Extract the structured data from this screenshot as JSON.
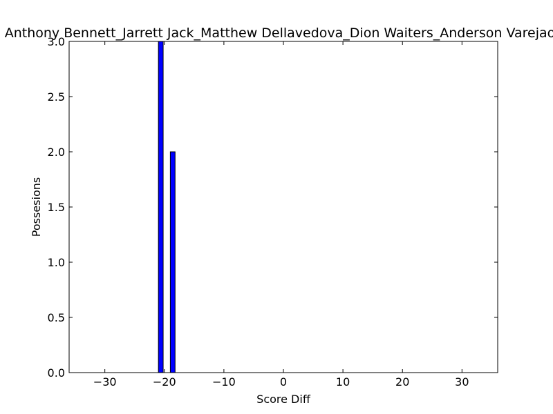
{
  "chart_data": {
    "type": "bar",
    "title": "Anthony Bennett_Jarrett Jack_Matthew Dellavedova_Dion Waiters_Anderson Varejao",
    "xlabel": "Score Diff",
    "ylabel": "Possesions",
    "xlim": [
      -36,
      36
    ],
    "ylim": [
      0,
      3
    ],
    "xticks": [
      -30,
      -20,
      -10,
      0,
      10,
      20,
      30
    ],
    "xtick_labels": [
      "−30",
      "−20",
      "−10",
      "0",
      "10",
      "20",
      "30"
    ],
    "yticks": [
      0,
      0.5,
      1,
      1.5,
      2,
      2.5,
      3
    ],
    "ytick_labels": [
      "0.0",
      "0.5",
      "1.0",
      "1.5",
      "2.0",
      "2.5",
      "3.0"
    ],
    "bar_width": 0.8,
    "x": [
      -36,
      -35,
      -34,
      -33,
      -32,
      -31,
      -30,
      -29,
      -28,
      -27,
      -26,
      -25,
      -24,
      -23,
      -22,
      -21,
      -20,
      -19,
      -18,
      -17,
      -16,
      -15,
      -14,
      -13,
      -12,
      -11,
      -10,
      -9,
      -8,
      -7,
      -6,
      -5,
      -4,
      -3,
      -2,
      -1,
      0,
      1,
      2,
      3,
      4,
      5,
      6,
      7,
      8,
      9,
      10,
      11,
      12,
      13,
      14,
      15,
      16,
      17,
      18,
      19,
      20,
      21,
      22,
      23,
      24,
      25,
      26,
      27,
      28,
      29,
      30,
      31,
      32,
      33,
      34,
      35
    ],
    "values": [
      0,
      0,
      0,
      0,
      0,
      0,
      0,
      0,
      0,
      0,
      0,
      0,
      0,
      0,
      0,
      3,
      0,
      2,
      0,
      0,
      0,
      0,
      0,
      0,
      0,
      0,
      0,
      0,
      0,
      0,
      0,
      0,
      0,
      0,
      0,
      0,
      0,
      0,
      0,
      0,
      0,
      0,
      0,
      0,
      0,
      0,
      0,
      0,
      0,
      0,
      0,
      0,
      0,
      0,
      0,
      0,
      0,
      0,
      0,
      0,
      0,
      0,
      0,
      0,
      0,
      0,
      0,
      0,
      0,
      0,
      0,
      0
    ],
    "bar_color": "#0000ff",
    "edge_color": "#000000",
    "grid": false,
    "legend": "none"
  }
}
